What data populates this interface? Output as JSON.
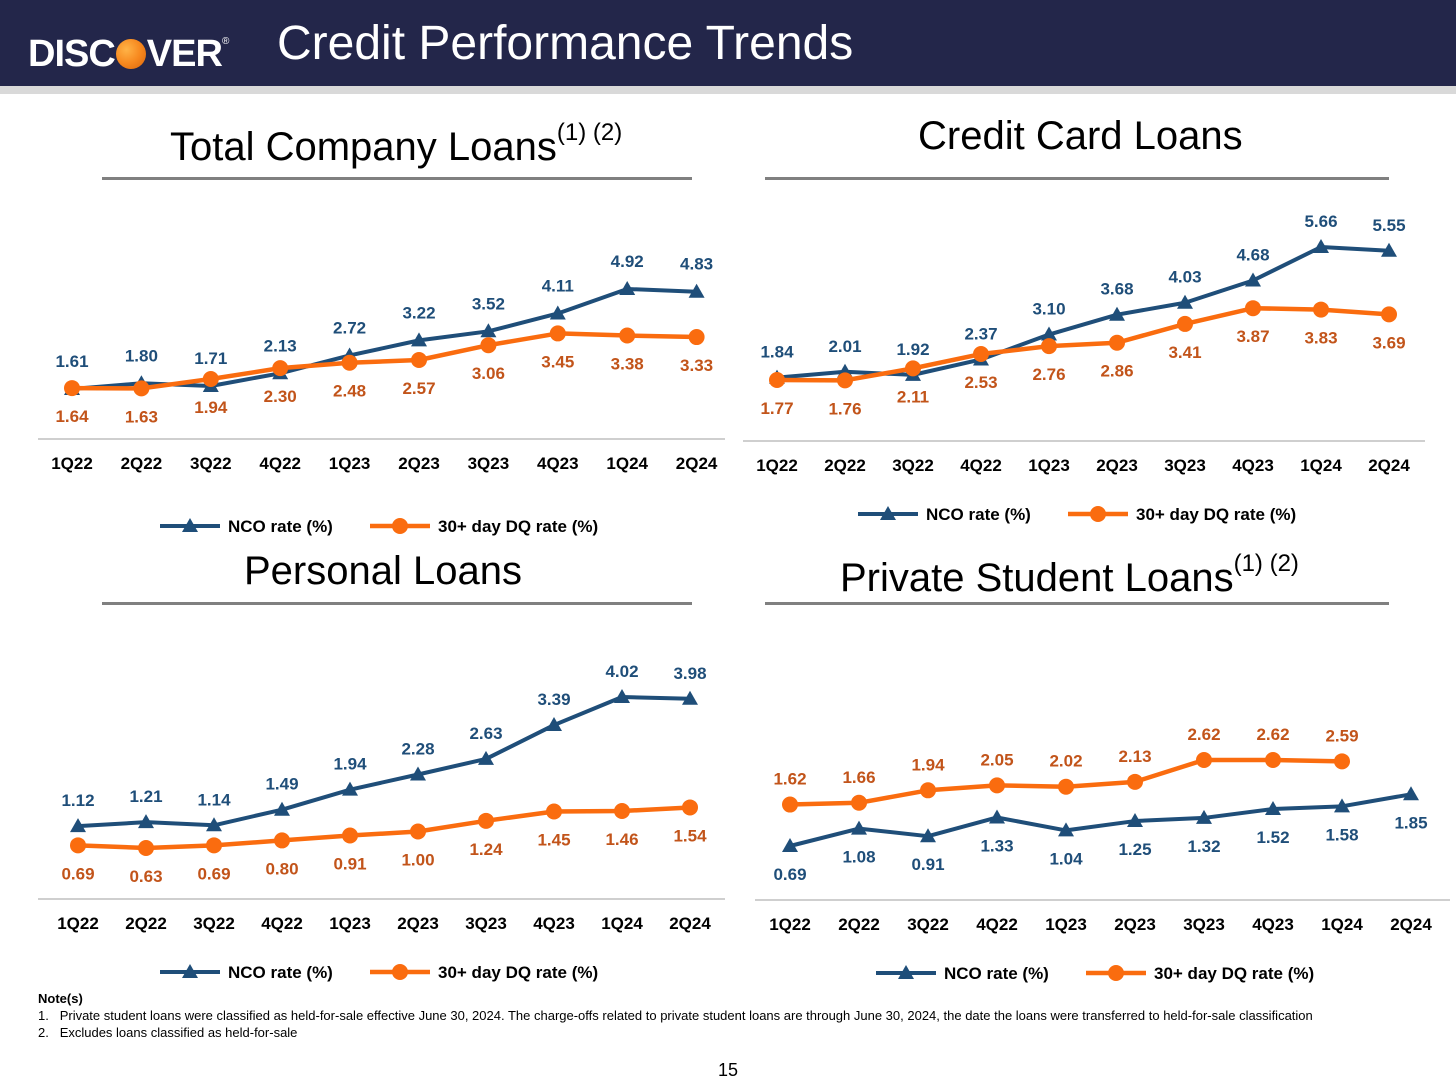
{
  "header": {
    "logo_text_left": "DISC",
    "logo_text_right": "VER",
    "logo_mark": "®",
    "title": "Credit Performance Trends"
  },
  "colors": {
    "nco": "#1f4e79",
    "dq": "#fa6c0f",
    "nco_label": "#1f4e79",
    "dq_label": "#c2541a",
    "header_bg": "#23264a"
  },
  "chart_data": [
    {
      "type": "line",
      "title": "Total Company Loans",
      "title_sup": "(1) (2)",
      "categories": [
        "1Q22",
        "2Q22",
        "3Q22",
        "4Q22",
        "1Q23",
        "2Q23",
        "3Q23",
        "4Q23",
        "1Q24",
        "2Q24"
      ],
      "series": [
        {
          "name": "NCO rate (%)",
          "marker": "triangle",
          "values": [
            1.61,
            1.8,
            1.71,
            2.13,
            2.72,
            3.22,
            3.52,
            4.11,
            4.92,
            4.83
          ],
          "labels": [
            "1.61",
            "1.80",
            "1.71",
            "2.13",
            "2.72",
            "3.22",
            "3.52",
            "4.11",
            "4.92",
            "4.83"
          ]
        },
        {
          "name": "30+ day DQ rate (%)",
          "marker": "circle",
          "values": [
            1.64,
            1.63,
            1.94,
            2.3,
            2.48,
            2.57,
            3.06,
            3.45,
            3.38,
            3.33
          ],
          "labels": [
            "1.64",
            "1.63",
            "1.94",
            "2.30",
            "2.48",
            "2.57",
            "3.06",
            "3.45",
            "3.38",
            "3.33"
          ]
        }
      ],
      "legend": "bottom"
    },
    {
      "type": "line",
      "title": "Credit Card Loans",
      "title_sup": "",
      "categories": [
        "1Q22",
        "2Q22",
        "3Q22",
        "4Q22",
        "1Q23",
        "2Q23",
        "3Q23",
        "4Q23",
        "1Q24",
        "2Q24"
      ],
      "series": [
        {
          "name": "NCO rate (%)",
          "marker": "triangle",
          "values": [
            1.84,
            2.01,
            1.92,
            2.37,
            3.1,
            3.68,
            4.03,
            4.68,
            5.66,
            5.55
          ],
          "labels": [
            "1.84",
            "2.01",
            "1.92",
            "2.37",
            "3.10",
            "3.68",
            "4.03",
            "4.68",
            "5.66",
            "5.55"
          ]
        },
        {
          "name": "30+ day DQ rate (%)",
          "marker": "circle",
          "values": [
            1.77,
            1.76,
            2.11,
            2.53,
            2.76,
            2.86,
            3.41,
            3.87,
            3.83,
            3.69
          ],
          "labels": [
            "1.77",
            "1.76",
            "2.11",
            "2.53",
            "2.76",
            "2.86",
            "3.41",
            "3.87",
            "3.83",
            "3.69"
          ]
        }
      ],
      "legend": "bottom"
    },
    {
      "type": "line",
      "title": "Personal Loans",
      "title_sup": "",
      "categories": [
        "1Q22",
        "2Q22",
        "3Q22",
        "4Q22",
        "1Q23",
        "2Q23",
        "3Q23",
        "4Q23",
        "1Q24",
        "2Q24"
      ],
      "series": [
        {
          "name": "NCO rate (%)",
          "marker": "triangle",
          "values": [
            1.12,
            1.21,
            1.14,
            1.49,
            1.94,
            2.28,
            2.63,
            3.39,
            4.02,
            3.98
          ],
          "labels": [
            "1.12",
            "1.21",
            "1.14",
            "1.49",
            "1.94",
            "2.28",
            "2.63",
            "3.39",
            "4.02",
            "3.98"
          ]
        },
        {
          "name": "30+ day DQ rate (%)",
          "marker": "circle",
          "values": [
            0.69,
            0.63,
            0.69,
            0.8,
            0.91,
            1.0,
            1.24,
            1.45,
            1.46,
            1.54
          ],
          "labels": [
            "0.69",
            "0.63",
            "0.69",
            "0.80",
            "0.91",
            "1.00",
            "1.24",
            "1.45",
            "1.46",
            "1.54"
          ]
        }
      ],
      "legend": "bottom"
    },
    {
      "type": "line",
      "title": "Private Student Loans",
      "title_sup": "(1) (2)",
      "categories": [
        "1Q22",
        "2Q22",
        "3Q22",
        "4Q22",
        "1Q23",
        "2Q23",
        "3Q23",
        "4Q23",
        "1Q24",
        "2Q24"
      ],
      "series": [
        {
          "name": "NCO rate (%)",
          "marker": "triangle",
          "values": [
            0.69,
            1.08,
            0.91,
            1.33,
            1.04,
            1.25,
            1.32,
            1.52,
            1.58,
            1.85
          ],
          "labels": [
            "0.69",
            "1.08",
            "0.91",
            "1.33",
            "1.04",
            "1.25",
            "1.32",
            "1.52",
            "1.58",
            "1.85"
          ]
        },
        {
          "name": "30+ day DQ rate (%)",
          "marker": "circle",
          "values": [
            1.62,
            1.66,
            1.94,
            2.05,
            2.02,
            2.13,
            2.62,
            2.62,
            2.59,
            null
          ],
          "labels": [
            "1.62",
            "1.66",
            "1.94",
            "2.05",
            "2.02",
            "2.13",
            "2.62",
            "2.62",
            "2.59",
            ""
          ]
        }
      ],
      "legend": "bottom"
    }
  ],
  "notes": {
    "heading": "Note(s)",
    "items": [
      {
        "num": "1.",
        "text": "Private student loans were classified as held-for-sale effective June 30, 2024. The charge-offs related to private student loans are through June 30, 2024, the date the loans were transferred to held-for-sale classification"
      },
      {
        "num": "2.",
        "text": "Excludes loans classified as held-for-sale"
      }
    ]
  },
  "page_number": "15"
}
